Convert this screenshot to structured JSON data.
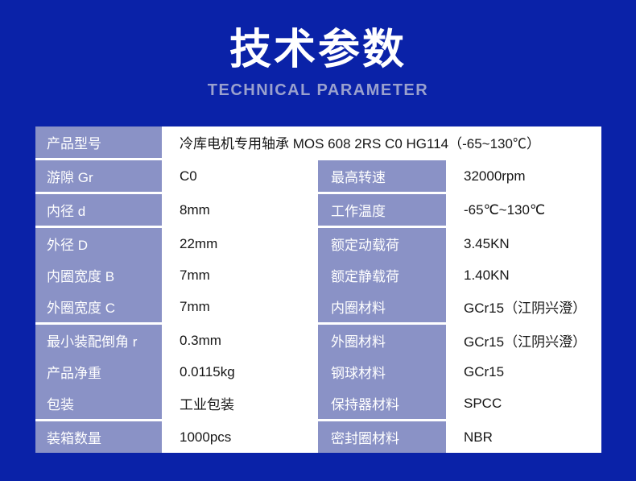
{
  "colors": {
    "page_background": "#0a22a8",
    "label_cell": "#8a92c6",
    "value_cell": "#ffffff",
    "title_text": "#ffffff",
    "subtitle_text": "#9aa1ce",
    "value_text": "#161616",
    "divider": "#ffffff"
  },
  "header": {
    "title": "技术参数",
    "subtitle": "TECHNICAL PARAMETER"
  },
  "table": {
    "model": {
      "label": "产品型号",
      "value": "冷库电机专用轴承 MOS 608 2RS C0 HG114（-65~130℃）"
    },
    "blocks": [
      {
        "rows": [
          {
            "l1": "游隙 Gr",
            "v1": "C0",
            "l2": "最高转速",
            "v2": "32000rpm"
          }
        ]
      },
      {
        "rows": [
          {
            "l1": "内径 d",
            "v1": "8mm",
            "l2": "工作温度",
            "v2": "-65℃~130℃"
          }
        ]
      },
      {
        "rows": [
          {
            "l1": "外径 D",
            "v1": "22mm",
            "l2": "额定动载荷",
            "v2": "3.45KN"
          },
          {
            "l1": "内圈宽度 B",
            "v1": "7mm",
            "l2": "额定静载荷",
            "v2": "1.40KN"
          },
          {
            "l1": "外圈宽度 C",
            "v1": "7mm",
            "l2": "内圈材料",
            "v2": "GCr15（江阴兴澄）"
          }
        ]
      },
      {
        "rows": [
          {
            "l1": "最小装配倒角 r",
            "v1": "0.3mm",
            "l2": "外圈材料",
            "v2": "GCr15（江阴兴澄）"
          },
          {
            "l1": "产品净重",
            "v1": "0.0115kg",
            "l2": "钢球材料",
            "v2": "GCr15"
          },
          {
            "l1": "包装",
            "v1": "工业包装",
            "l2": "保持器材料",
            "v2": "SPCC"
          }
        ]
      },
      {
        "rows": [
          {
            "l1": "装箱数量",
            "v1": "1000pcs",
            "l2": "密封圈材料",
            "v2": "NBR"
          }
        ]
      }
    ]
  }
}
